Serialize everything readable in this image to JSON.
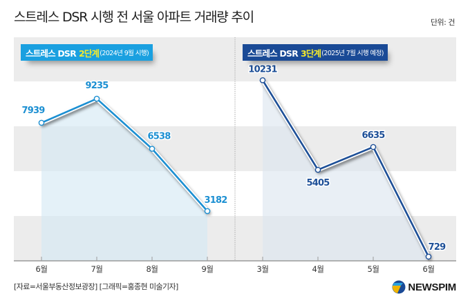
{
  "title": "스트레스 DSR 시행 전 서울 아파트 거래량 추이",
  "unit": "단위: 건",
  "source": "[자료=서울부동산정보광장] [그래픽=홍종현 미술기자]",
  "logo": {
    "text": "NEWSPIM",
    "icon": "newspim-logo-icon"
  },
  "colors": {
    "left_line": "#1b8fd2",
    "left_fill": "#d6e9f5",
    "left_badge": "#1aa0e0",
    "right_line": "#1d4f97",
    "right_fill": "#dde6f0",
    "right_badge": "#1a4a96",
    "stage_highlight": "#f5ea2b",
    "band_gray": "#ececec"
  },
  "chart_data": [
    {
      "type": "area",
      "panel": "left",
      "badge": {
        "main": "스트레스 DSR",
        "stage": "2단계",
        "sub": "(2024년 9월 시행)"
      },
      "categories": [
        "6월",
        "7월",
        "8월",
        "9월"
      ],
      "values": [
        7939,
        9235,
        6538,
        3182
      ],
      "ylim": [
        0,
        11000
      ],
      "xlabel": "",
      "ylabel": "",
      "grid": "alternating horizontal bands"
    },
    {
      "type": "area",
      "panel": "right",
      "badge": {
        "main": "스트레스 DSR",
        "stage": "3단계",
        "sub": "(2025년 7월 시행 예정)"
      },
      "categories": [
        "3월",
        "4월",
        "5월",
        "6월"
      ],
      "values": [
        10231,
        5405,
        6635,
        729
      ],
      "ylim": [
        0,
        11000
      ],
      "xlabel": "",
      "ylabel": "",
      "grid": "alternating horizontal bands"
    }
  ]
}
